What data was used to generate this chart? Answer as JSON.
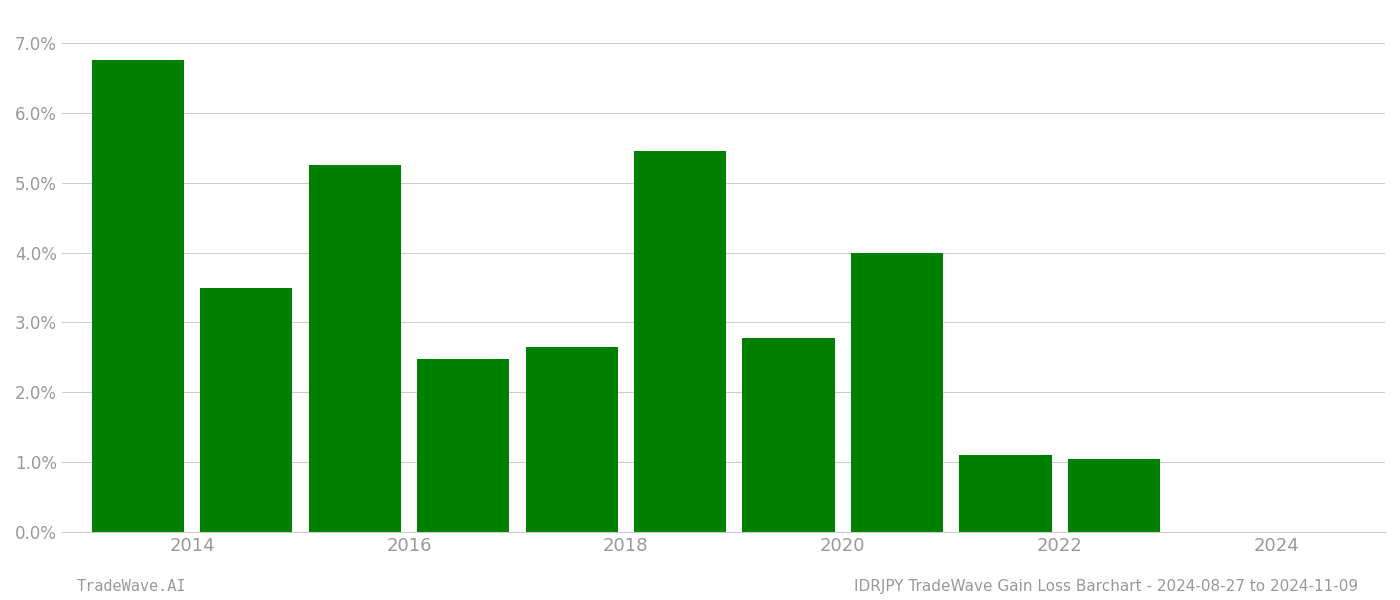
{
  "years": [
    2014,
    2015,
    2016,
    2017,
    2018,
    2019,
    2020,
    2021,
    2022,
    2023
  ],
  "values": [
    0.0675,
    0.035,
    0.0525,
    0.0248,
    0.0265,
    0.0545,
    0.0278,
    0.04,
    0.011,
    0.0105
  ],
  "bar_color": "#008000",
  "background_color": "#ffffff",
  "grid_color": "#cccccc",
  "axis_label_color": "#999999",
  "ylim": [
    0.0,
    0.074
  ],
  "yticks": [
    0.0,
    0.01,
    0.02,
    0.03,
    0.04,
    0.05,
    0.06,
    0.07
  ],
  "xtick_positions": [
    2014.5,
    2016.5,
    2018.5,
    2020.5,
    2022.5,
    2024.5
  ],
  "xtick_labels": [
    "2014",
    "2016",
    "2018",
    "2020",
    "2022",
    "2024"
  ],
  "footer_left": "TradeWave.AI",
  "footer_right": "IDRJPY TradeWave Gain Loss Barchart - 2024-08-27 to 2024-11-09",
  "bar_width": 0.85
}
